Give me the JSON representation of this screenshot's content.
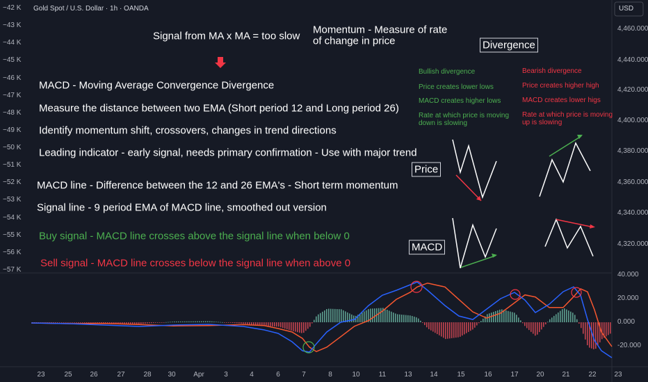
{
  "header": {
    "title": "Gold Spot / U.S. Dollar · 1h · OANDA",
    "currency": "USD"
  },
  "left_axis": [
    "−42 K",
    "−43 K",
    "−44 K",
    "−45 K",
    "−46 K",
    "−47 K",
    "−48 K",
    "−49 K",
    "−50 K",
    "−51 K",
    "−52 K",
    "−53 K",
    "−54 K",
    "−55 K",
    "−56 K",
    "−57 K"
  ],
  "price_axis": [
    "4,460.000",
    "4,440.000",
    "4,420.000",
    "4,400.000",
    "4,380.000",
    "4,360.000",
    "4,340.000",
    "4,320.000"
  ],
  "macd_axis": [
    "40.000",
    "20.000",
    "0.000",
    "-20.000"
  ],
  "time_axis": [
    "23",
    "25",
    "26",
    "27",
    "28",
    "30",
    "Apr",
    "3",
    "4",
    "6",
    "7",
    "8",
    "10",
    "11",
    "13",
    "14",
    "15",
    "16",
    "17",
    "20",
    "21",
    "22",
    "23"
  ],
  "notes": {
    "signal": "Signal from MA x MA = too slow",
    "momentum": [
      "Momentum - Measure of rate",
      "of change in price"
    ],
    "divergence": "Divergence",
    "price": "Price",
    "macd": "MACD",
    "lines": [
      "MACD - Moving Average Convergence Divergence",
      "Measure the distance between two EMA (Short period 12 and Long period 26)",
      "Identify momentum shift, crossovers, changes in trend directions",
      "Leading indicator - early signal, needs primary confirmation - Use with major trend",
      "MACD line - Difference between the 12 and 26 EMA's - Short term momentum",
      "Signal line - 9 period EMA of MACD line, smoothed out version"
    ],
    "buy": "Buy signal - MACD line crosses above the signal line when below 0",
    "sell": "Sell signal - MACD line crosses below the signal line when above 0",
    "bullish": [
      "Bullish divergence",
      "Price creates lower lows",
      "MACD creates higher lows",
      "Rate at which price is moving",
      "down is slowing"
    ],
    "bearish": [
      "Bearish divergence",
      "Price creates higher high",
      "MACD creates lower higs",
      "Rate at which price is moving",
      "up is slowing"
    ]
  }
}
